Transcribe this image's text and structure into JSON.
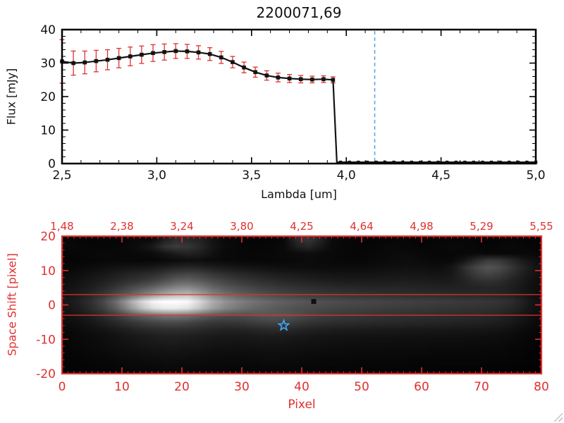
{
  "page": {
    "background": "#ffffff"
  },
  "colors": {
    "frame_top": "#000000",
    "axis_red": "#e03030",
    "error_bar": "#e03030",
    "series_line": "#131313",
    "marker": "#131313",
    "blue_dashed": "#55a0dd",
    "star": "#3fa9f5",
    "square_marker": "#101010",
    "image_background": "#000000"
  },
  "chart_data": [
    {
      "type": "line",
      "title": "2200071,69",
      "xlabel": "Lambda [um]",
      "ylabel": "Flux [mJy]",
      "xlim": [
        2.5,
        5.0
      ],
      "ylim": [
        0,
        40
      ],
      "grid": false,
      "xticks": {
        "values": [
          2.5,
          3.0,
          3.5,
          4.0,
          4.5,
          5.0
        ],
        "labels": [
          "2,5",
          "3,0",
          "3,5",
          "4,0",
          "4,5",
          "5,0"
        ],
        "minor_step": 0.1
      },
      "yticks": {
        "values": [
          0,
          10,
          20,
          30,
          40
        ],
        "labels": [
          "0",
          "10",
          "20",
          "30",
          "40"
        ],
        "minor_step": 2
      },
      "series": [
        {
          "name": "spectrum",
          "x": [
            2.5,
            2.56,
            2.62,
            2.68,
            2.74,
            2.8,
            2.86,
            2.92,
            2.98,
            3.04,
            3.1,
            3.16,
            3.22,
            3.28,
            3.34,
            3.4,
            3.46,
            3.52,
            3.58,
            3.64,
            3.7,
            3.76,
            3.82,
            3.88,
            3.93
          ],
          "y": [
            30.5,
            30.0,
            30.2,
            30.6,
            31.0,
            31.5,
            32.0,
            32.5,
            33.0,
            33.3,
            33.6,
            33.5,
            33.2,
            32.7,
            31.7,
            30.3,
            28.7,
            27.3,
            26.3,
            25.7,
            25.4,
            25.2,
            25.1,
            25.2,
            25.0
          ],
          "yerr": [
            6.5,
            3.6,
            3.4,
            3.2,
            3.0,
            2.9,
            2.8,
            2.6,
            2.5,
            2.4,
            2.2,
            2.1,
            2.0,
            1.9,
            1.8,
            1.7,
            1.6,
            1.5,
            1.4,
            1.3,
            1.2,
            1.1,
            1.0,
            1.0,
            0.9
          ]
        }
      ],
      "drop_x": 3.95,
      "zero_tail": {
        "x_start": 3.97,
        "x_end": 5.0,
        "n": 23,
        "y": 0.4
      },
      "blue_dashed_vline_x": 4.15,
      "red_dashed_hline": {
        "y": 0.4,
        "x_start": 3.95,
        "x_end": 5.0
      }
    },
    {
      "type": "heatmap",
      "xlabel": "Pixel",
      "ylabel": "Space Shift [pixel]",
      "xlim": [
        0,
        80
      ],
      "ylim": [
        -20,
        20
      ],
      "xticks": {
        "values": [
          0,
          10,
          20,
          30,
          40,
          50,
          60,
          70,
          80
        ],
        "labels": [
          "0",
          "10",
          "20",
          "30",
          "40",
          "50",
          "60",
          "70",
          "80"
        ],
        "minor_step": 1
      },
      "yticks": {
        "values": [
          20,
          10,
          0,
          -10,
          -20
        ],
        "labels": [
          "20",
          "10",
          "0",
          "-10",
          "-20"
        ],
        "minor_step": 2
      },
      "top_axis_labels": [
        "1,48",
        "2,38",
        "3,24",
        "3,80",
        "4,25",
        "4,64",
        "4,98",
        "5,29",
        "5,55"
      ],
      "aperture_lines_y": [
        3,
        -3
      ],
      "star_marker": {
        "x": 37,
        "y": -6
      },
      "square_marker": {
        "x": 42,
        "y": 1
      },
      "image": {
        "cols": 40,
        "rows": 20,
        "values": [
          [
            8,
            6,
            5,
            7,
            6,
            8,
            10,
            12,
            30,
            45,
            40,
            35,
            20,
            10,
            8,
            6,
            5,
            6,
            8,
            40,
            55,
            35,
            12,
            8,
            6,
            5,
            6,
            7,
            8,
            6,
            5,
            6,
            7,
            8,
            6,
            5,
            6,
            7,
            6,
            5
          ],
          [
            10,
            8,
            7,
            6,
            8,
            10,
            15,
            25,
            50,
            60,
            55,
            40,
            22,
            12,
            8,
            7,
            6,
            8,
            10,
            30,
            40,
            25,
            10,
            8,
            7,
            6,
            8,
            10,
            8,
            7,
            6,
            8,
            10,
            8,
            7,
            6,
            8,
            10,
            8,
            6
          ],
          [
            6,
            7,
            8,
            10,
            9,
            8,
            10,
            12,
            20,
            30,
            35,
            30,
            18,
            10,
            8,
            7,
            8,
            9,
            10,
            12,
            14,
            12,
            10,
            8,
            7,
            8,
            9,
            10,
            12,
            10,
            8,
            7,
            8,
            9,
            10,
            8,
            7,
            8,
            9,
            8
          ],
          [
            5,
            6,
            7,
            8,
            9,
            8,
            7,
            8,
            10,
            12,
            15,
            14,
            12,
            10,
            9,
            8,
            7,
            8,
            9,
            10,
            12,
            10,
            9,
            8,
            7,
            8,
            10,
            12,
            14,
            12,
            10,
            9,
            10,
            20,
            40,
            60,
            55,
            40,
            25,
            15
          ],
          [
            8,
            10,
            12,
            15,
            18,
            20,
            22,
            25,
            30,
            35,
            38,
            35,
            30,
            26,
            22,
            20,
            18,
            16,
            15,
            14,
            13,
            12,
            12,
            12,
            12,
            13,
            14,
            15,
            16,
            16,
            15,
            14,
            20,
            45,
            70,
            85,
            75,
            55,
            35,
            20
          ],
          [
            12,
            15,
            20,
            25,
            30,
            35,
            40,
            45,
            55,
            65,
            70,
            65,
            55,
            48,
            42,
            38,
            34,
            30,
            28,
            26,
            24,
            22,
            21,
            20,
            20,
            20,
            21,
            22,
            23,
            22,
            21,
            20,
            25,
            40,
            60,
            70,
            62,
            45,
            30,
            18
          ],
          [
            15,
            20,
            26,
            32,
            40,
            48,
            55,
            65,
            80,
            95,
            100,
            90,
            78,
            68,
            60,
            54,
            48,
            44,
            40,
            37,
            34,
            32,
            30,
            29,
            28,
            28,
            28,
            29,
            30,
            29,
            28,
            27,
            28,
            35,
            45,
            50,
            45,
            35,
            25,
            15
          ],
          [
            18,
            24,
            32,
            42,
            55,
            70,
            85,
            100,
            120,
            135,
            140,
            125,
            105,
            90,
            80,
            72,
            65,
            60,
            55,
            51,
            48,
            45,
            43,
            41,
            40,
            39,
            38,
            38,
            38,
            37,
            36,
            35,
            34,
            34,
            36,
            38,
            36,
            30,
            22,
            14
          ],
          [
            22,
            30,
            40,
            55,
            75,
            95,
            120,
            145,
            170,
            185,
            190,
            165,
            135,
            115,
            100,
            90,
            82,
            75,
            70,
            65,
            61,
            58,
            55,
            53,
            51,
            50,
            49,
            48,
            47,
            46,
            45,
            44,
            42,
            41,
            40,
            40,
            38,
            32,
            24,
            15
          ],
          [
            25,
            35,
            50,
            75,
            110,
            160,
            210,
            245,
            255,
            255,
            250,
            215,
            175,
            150,
            132,
            120,
            110,
            102,
            95,
            90,
            85,
            81,
            78,
            75,
            73,
            71,
            69,
            67,
            66,
            64,
            63,
            61,
            60,
            58,
            57,
            55,
            52,
            45,
            32,
            18
          ],
          [
            22,
            30,
            45,
            65,
            95,
            140,
            185,
            220,
            235,
            235,
            225,
            195,
            160,
            135,
            120,
            108,
            99,
            92,
            86,
            81,
            77,
            73,
            70,
            68,
            66,
            64,
            62,
            60,
            59,
            57,
            56,
            54,
            53,
            51,
            50,
            48,
            45,
            38,
            28,
            16
          ],
          [
            18,
            24,
            32,
            45,
            60,
            78,
            95,
            110,
            120,
            122,
            115,
            100,
            88,
            80,
            78,
            80,
            84,
            86,
            84,
            78,
            70,
            64,
            60,
            57,
            55,
            53,
            51,
            50,
            48,
            47,
            46,
            45,
            44,
            43,
            42,
            40,
            37,
            30,
            22,
            13
          ],
          [
            14,
            18,
            24,
            32,
            42,
            52,
            62,
            70,
            75,
            76,
            72,
            64,
            58,
            55,
            56,
            60,
            65,
            68,
            66,
            60,
            54,
            50,
            48,
            46,
            45,
            44,
            43,
            42,
            41,
            40,
            39,
            38,
            37,
            36,
            35,
            33,
            30,
            25,
            18,
            11
          ],
          [
            10,
            13,
            17,
            22,
            28,
            34,
            40,
            45,
            48,
            49,
            47,
            43,
            39,
            37,
            37,
            39,
            42,
            44,
            43,
            40,
            36,
            33,
            31,
            30,
            29,
            28,
            28,
            27,
            27,
            26,
            26,
            25,
            25,
            24,
            24,
            23,
            21,
            17,
            13,
            8
          ],
          [
            8,
            10,
            12,
            15,
            19,
            23,
            27,
            30,
            32,
            33,
            32,
            29,
            27,
            25,
            25,
            26,
            28,
            29,
            28,
            26,
            24,
            22,
            21,
            20,
            20,
            19,
            19,
            18,
            18,
            18,
            17,
            17,
            17,
            16,
            16,
            15,
            14,
            12,
            9,
            6
          ],
          [
            7,
            9,
            11,
            14,
            17,
            20,
            23,
            25,
            27,
            27,
            26,
            24,
            22,
            21,
            20,
            21,
            22,
            22,
            22,
            20,
            19,
            18,
            17,
            16,
            16,
            15,
            15,
            15,
            14,
            14,
            14,
            13,
            13,
            13,
            12,
            12,
            11,
            9,
            7,
            5
          ],
          [
            6,
            8,
            10,
            12,
            14,
            16,
            18,
            20,
            21,
            21,
            20,
            19,
            17,
            16,
            16,
            16,
            17,
            17,
            17,
            16,
            15,
            14,
            13,
            13,
            12,
            12,
            12,
            11,
            11,
            11,
            11,
            10,
            10,
            10,
            10,
            9,
            9,
            7,
            6,
            4
          ],
          [
            5,
            6,
            8,
            9,
            11,
            12,
            14,
            15,
            16,
            16,
            15,
            14,
            13,
            12,
            12,
            12,
            13,
            13,
            13,
            12,
            11,
            11,
            10,
            10,
            10,
            9,
            9,
            9,
            9,
            8,
            8,
            8,
            8,
            8,
            8,
            7,
            7,
            6,
            5,
            3
          ],
          [
            4,
            5,
            6,
            7,
            8,
            9,
            10,
            11,
            12,
            12,
            11,
            11,
            10,
            9,
            9,
            9,
            10,
            10,
            10,
            9,
            9,
            8,
            8,
            8,
            7,
            7,
            7,
            7,
            7,
            6,
            6,
            6,
            6,
            6,
            6,
            6,
            5,
            5,
            4,
            3
          ],
          [
            3,
            4,
            5,
            5,
            6,
            7,
            8,
            8,
            9,
            9,
            9,
            8,
            8,
            7,
            7,
            7,
            7,
            8,
            8,
            7,
            7,
            6,
            6,
            6,
            6,
            5,
            5,
            5,
            5,
            5,
            5,
            4,
            4,
            4,
            4,
            4,
            4,
            3,
            3,
            2
          ]
        ]
      }
    }
  ]
}
